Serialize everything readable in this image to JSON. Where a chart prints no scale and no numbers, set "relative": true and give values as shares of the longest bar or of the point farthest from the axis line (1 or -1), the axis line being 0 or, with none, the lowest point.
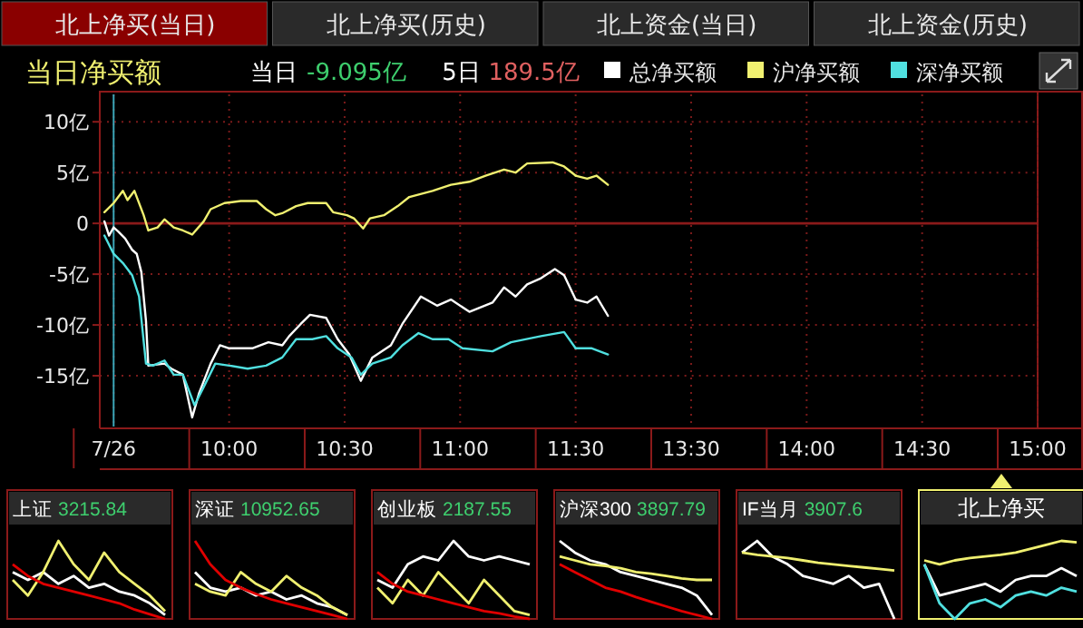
{
  "chart_data": [
    {
      "type": "other",
      "annotations": [
        "北上净买(当日)",
        "北上净买(历史)",
        "北上资金(当日)",
        "北上资金(历史)"
      ]
    },
    {
      "type": "line",
      "title": "当日净买额",
      "annotations": [
        "当日",
        "-9.095亿",
        "5日",
        "189.5亿"
      ],
      "legend": "top right",
      "grid": true,
      "line_style": "solid",
      "xlim": [
        9.44,
        11.5
      ],
      "ylim": [
        -20,
        12.7
      ],
      "xticks": [
        {
          "value": 9.5,
          "label": "7/26"
        },
        {
          "value": 10,
          "label": "10:00"
        },
        {
          "value": 10.5,
          "label": "10:30"
        },
        {
          "value": 11,
          "label": "11:00"
        },
        {
          "value": 11.5,
          "label": "11:30"
        }
      ],
      "yticks": [
        {
          "value": 10,
          "label": "10亿"
        },
        {
          "value": 5,
          "label": "5亿"
        },
        0,
        {
          "value": -5,
          "label": "-5亿"
        },
        {
          "value": -10,
          "label": "-10亿"
        },
        {
          "value": -15,
          "label": "-15亿"
        }
      ],
      "ref_lines": [
        {
          "axis": "y",
          "value": 0,
          "color": "#8b1a1a"
        },
        {
          "axis": "x",
          "value": 9.5,
          "color": "#3aa6b8"
        }
      ],
      "series": [
        {
          "name": "总净买额",
          "color": "#ffffff",
          "x": [
            9.46,
            9.48,
            9.5,
            9.52,
            9.55,
            9.58,
            9.6,
            9.62,
            9.64,
            9.65,
            9.72,
            9.75,
            9.8,
            9.84,
            9.87,
            9.92,
            9.96,
            10.0,
            10.1,
            10.17,
            10.23,
            10.26,
            10.31,
            10.35,
            10.42,
            10.47,
            10.52,
            10.57,
            10.62,
            10.7,
            10.75,
            10.83,
            10.9,
            10.96,
            11.04,
            11.14,
            11.19,
            11.24,
            11.29,
            11.35,
            11.41,
            11.45,
            11.5
          ],
          "values": [
            0.2,
            -1.2,
            -0.4,
            -0.8,
            -1.5,
            -2.6,
            -3.0,
            -4.8,
            -9.6,
            -14.0,
            -13.8,
            -14.3,
            -14.9,
            -19.1,
            -16.7,
            -13.8,
            -12.0,
            -12.3,
            -12.3,
            -11.7,
            -12.0,
            -11.1,
            -9.9,
            -9.0,
            -9.3,
            -11.4,
            -12.9,
            -15.5,
            -13.2,
            -12.0,
            -9.9,
            -7.2,
            -8.1,
            -7.5,
            -8.7,
            -7.8,
            -6.3,
            -7.2,
            -6.0,
            -5.4,
            -4.5,
            -5.1,
            -7.5
          ]
        },
        {
          "name": "沪净买额",
          "color": "#f0f070",
          "x": [
            9.46,
            9.5,
            9.54,
            9.56,
            9.59,
            9.63,
            9.65,
            9.69,
            9.72,
            9.76,
            9.8,
            9.84,
            9.89,
            9.92,
            9.98,
            10.05,
            10.12,
            10.16,
            10.2,
            10.23,
            10.29,
            10.34,
            10.42,
            10.45,
            10.51,
            10.54,
            10.58,
            10.61,
            10.67,
            10.73,
            10.78,
            10.88,
            10.96,
            11.04,
            11.11,
            11.19,
            11.24,
            11.29,
            11.4,
            11.45,
            11.5
          ],
          "values": [
            1.1,
            2.0,
            3.2,
            2.3,
            3.2,
            0.8,
            -0.7,
            -0.4,
            0.4,
            -0.4,
            -0.7,
            -1.1,
            0.2,
            1.4,
            2.0,
            2.2,
            2.2,
            1.4,
            0.8,
            1.0,
            1.7,
            2.0,
            2.0,
            1.1,
            0.8,
            0.5,
            -0.5,
            0.5,
            0.8,
            1.7,
            2.6,
            3.2,
            3.8,
            4.1,
            4.7,
            5.3,
            5.0,
            5.9,
            6.0,
            5.6,
            4.7
          ]
        },
        {
          "name": "深净买额",
          "color": "#50e0e0",
          "x": [
            9.46,
            9.5,
            9.54,
            9.58,
            9.61,
            9.64,
            9.67,
            9.72,
            9.76,
            9.8,
            9.85,
            9.89,
            9.94,
            10.0,
            10.08,
            10.16,
            10.23,
            10.29,
            10.36,
            10.42,
            10.47,
            10.53,
            10.57,
            10.62,
            10.7,
            10.75,
            10.82,
            10.88,
            10.95,
            11.01,
            11.14,
            11.22,
            11.35,
            11.45,
            11.5
          ],
          "values": [
            -1.2,
            -3.0,
            -3.9,
            -5.1,
            -7.2,
            -13.8,
            -14.0,
            -13.5,
            -14.9,
            -14.9,
            -17.9,
            -16.1,
            -13.8,
            -14.0,
            -14.3,
            -14.0,
            -13.2,
            -11.4,
            -11.4,
            -11.1,
            -12.3,
            -13.2,
            -14.9,
            -13.8,
            -13.2,
            -12.0,
            -10.8,
            -11.4,
            -11.4,
            -12.3,
            -12.6,
            -11.7,
            -11.1,
            -10.7,
            -12.3
          ]
        }
      ]
    },
    {
      "type": "line",
      "grid": true,
      "line_style": "solid",
      "tick_labels": "x",
      "xlim": [
        13,
        15
      ],
      "ylim": [
        -20,
        12.7
      ],
      "xticks": [
        {
          "value": 13.5,
          "label": "13:30"
        },
        {
          "value": 14,
          "label": "14:00"
        },
        {
          "value": 14.5,
          "label": "14:30"
        },
        {
          "value": 15,
          "label": "15:00"
        }
      ],
      "yticks": [
        10,
        5,
        0,
        -5,
        -10,
        -15
      ],
      "ref_lines": [
        {
          "axis": "y",
          "value": 0,
          "color": "#8b1a1a"
        }
      ],
      "series": [
        {
          "color": "#ffffff",
          "x": [
            13.0,
            13.05,
            13.09,
            13.14
          ],
          "values": [
            -7.5,
            -7.8,
            -7.2,
            -9.1
          ]
        },
        {
          "color": "#f0f070",
          "x": [
            13.0,
            13.05,
            13.09,
            13.14
          ],
          "values": [
            4.7,
            4.4,
            4.7,
            3.8
          ]
        },
        {
          "color": "#50e0e0",
          "x": [
            13.0,
            13.07,
            13.14
          ],
          "values": [
            -12.3,
            -12.3,
            -12.9
          ]
        }
      ]
    },
    {
      "type": "line",
      "relative": true,
      "title": "上证",
      "subtitle": "3215.84",
      "categories": [
        null,
        null,
        null,
        null,
        null,
        null,
        null,
        null,
        null,
        null,
        null
      ],
      "series": [
        {
          "color": "#ffffff",
          "values": [
            0.6,
            0.5,
            0.6,
            0.45,
            0.55,
            0.4,
            0.45,
            0.35,
            0.3,
            0.2,
            0.05
          ]
        },
        {
          "color": "#f0f070",
          "values": [
            0.5,
            0.3,
            0.6,
            1,
            0.7,
            0.5,
            0.85,
            0.6,
            0.45,
            0.3,
            0.1
          ]
        },
        {
          "color": "#e00000",
          "values": [
            0.7,
            0.55,
            0.45,
            0.4,
            0.35,
            0.3,
            0.25,
            0.2,
            0.12,
            0.06,
            0
          ]
        }
      ]
    },
    {
      "type": "line",
      "relative": true,
      "title": "深证",
      "subtitle": "10952.65",
      "categories": [
        null,
        null,
        null,
        null,
        null,
        null,
        null,
        null,
        null,
        null,
        null
      ],
      "series": [
        {
          "color": "#ffffff",
          "values": [
            0.6,
            0.4,
            0.35,
            0.4,
            0.3,
            0.35,
            0.25,
            0.3,
            0.2,
            0.15,
            0.05
          ]
        },
        {
          "color": "#f0f070",
          "values": [
            0.45,
            0.35,
            0.3,
            0.6,
            0.45,
            0.35,
            0.55,
            0.4,
            0.3,
            0.15,
            0.05
          ]
        },
        {
          "color": "#e00000",
          "values": [
            1,
            0.7,
            0.5,
            0.4,
            0.32,
            0.25,
            0.2,
            0.15,
            0.1,
            0.05,
            0
          ]
        }
      ]
    },
    {
      "type": "line",
      "relative": true,
      "title": "创业板",
      "subtitle": "2187.55",
      "categories": [
        null,
        null,
        null,
        null,
        null,
        null,
        null,
        null,
        null,
        null,
        null
      ],
      "series": [
        {
          "color": "#ffffff",
          "values": [
            0.5,
            0.4,
            0.7,
            0.8,
            0.75,
            1,
            0.8,
            0.75,
            0.8,
            0.75,
            0.7
          ]
        },
        {
          "color": "#f0f070",
          "values": [
            0.4,
            0.2,
            0.5,
            0.3,
            0.6,
            0.4,
            0.2,
            0.5,
            0.3,
            0.1,
            0.05
          ]
        },
        {
          "color": "#e00000",
          "values": [
            0.6,
            0.45,
            0.35,
            0.3,
            0.25,
            0.2,
            0.15,
            0.1,
            0.07,
            0.03,
            0
          ]
        }
      ]
    },
    {
      "type": "line",
      "relative": true,
      "title": "沪深300",
      "subtitle": "3897.79",
      "categories": [
        null,
        null,
        null,
        null,
        null,
        null,
        null,
        null,
        null,
        null,
        null
      ],
      "series": [
        {
          "color": "#ffffff",
          "values": [
            1,
            0.85,
            0.75,
            0.7,
            0.6,
            0.55,
            0.5,
            0.45,
            0.4,
            0.3,
            0.05
          ]
        },
        {
          "color": "#f0f070",
          "values": [
            0.8,
            0.75,
            0.7,
            0.68,
            0.65,
            0.6,
            0.58,
            0.55,
            0.52,
            0.5,
            0.5
          ]
        },
        {
          "color": "#e00000",
          "values": [
            0.7,
            0.6,
            0.5,
            0.4,
            0.35,
            0.28,
            0.22,
            0.16,
            0.1,
            0.05,
            0
          ]
        }
      ]
    },
    {
      "type": "line",
      "relative": true,
      "title": "IF当月",
      "subtitle": "3907.6",
      "categories": [
        null,
        null,
        null,
        null,
        null,
        null,
        null,
        null,
        null,
        null,
        null
      ],
      "series": [
        {
          "color": "#ffffff",
          "values": [
            0.85,
            1,
            0.8,
            0.7,
            0.55,
            0.5,
            0.45,
            0.55,
            0.4,
            0.45,
            0
          ]
        },
        {
          "color": "#f0f070",
          "values": [
            0.85,
            0.82,
            0.8,
            0.78,
            0.75,
            0.72,
            0.7,
            0.68,
            0.66,
            0.64,
            0.62
          ]
        }
      ]
    },
    {
      "type": "line",
      "relative": true,
      "title": "北上净买",
      "categories": [
        null,
        null,
        null,
        null,
        null,
        null,
        null,
        null,
        null,
        null,
        null
      ],
      "series": [
        {
          "color": "#f0f070",
          "values": [
            0.75,
            0.7,
            0.75,
            0.78,
            0.8,
            0.82,
            0.85,
            0.9,
            0.95,
            1,
            0.98
          ]
        },
        {
          "color": "#ffffff",
          "values": [
            0.7,
            0.3,
            0.35,
            0.4,
            0.45,
            0.35,
            0.5,
            0.55,
            0.55,
            0.65,
            0.55
          ]
        },
        {
          "color": "#50e0e0",
          "values": [
            0.7,
            0.2,
            0,
            0.2,
            0.25,
            0.15,
            0.3,
            0.35,
            0.3,
            0.4,
            0.35
          ]
        }
      ]
    }
  ]
}
